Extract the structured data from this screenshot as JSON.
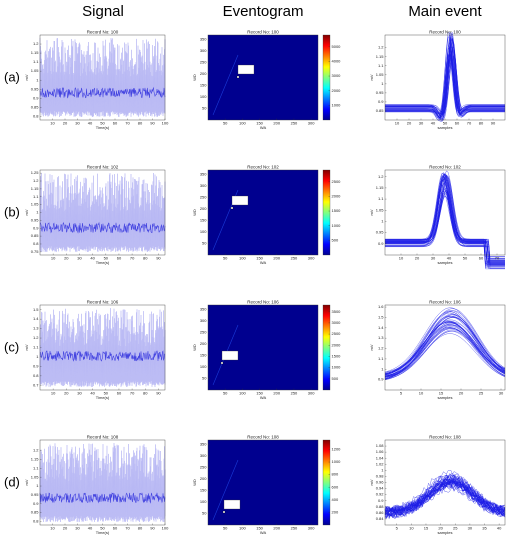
{
  "columns": [
    "Signal",
    "Eventogram",
    "Main event"
  ],
  "signal_xlabel": "Time(s)",
  "signal_ylabel": "mV",
  "event_xlabel": "WA",
  "event_ylabel": "WD",
  "main_xlabel": "samples",
  "main_ylabel": "mV",
  "rows": [
    {
      "label": "(a)",
      "title": "Record No: 100",
      "signal": {
        "xlim": [
          0,
          100
        ],
        "xticks": [
          10,
          20,
          30,
          40,
          50,
          60,
          70,
          80,
          90,
          100
        ],
        "ylim": [
          0.78,
          1.25
        ],
        "yticks": [
          0.8,
          0.85,
          0.9,
          0.95,
          1,
          1.05,
          1.1,
          1.15,
          1.2
        ]
      },
      "event": {
        "xlim": [
          0,
          320
        ],
        "ylim": [
          0,
          370
        ],
        "xticks": [
          50,
          100,
          150,
          200,
          250,
          300
        ],
        "yticks": [
          50,
          100,
          150,
          200,
          250,
          300,
          350
        ],
        "cblim": [
          0,
          5800
        ],
        "cbticks": [
          1000,
          2000,
          3000,
          4000,
          5000
        ]
      },
      "main": {
        "xlim": [
          0,
          100
        ],
        "xticks": [
          10,
          20,
          30,
          40,
          50,
          60,
          70,
          80,
          90
        ],
        "ylim": [
          0.8,
          1.27
        ],
        "yticks": [
          0.85,
          0.9,
          0.95,
          1,
          1.05,
          1.1,
          1.15,
          1.2
        ]
      }
    },
    {
      "label": "(b)",
      "title": "Record No: 102",
      "signal": {
        "xlim": [
          0,
          95
        ],
        "xticks": [
          10,
          20,
          30,
          40,
          50,
          60,
          70,
          80,
          90
        ],
        "ylim": [
          0.73,
          1.27
        ],
        "yticks": [
          0.75,
          0.8,
          0.85,
          0.9,
          0.95,
          1,
          1.05,
          1.1,
          1.15,
          1.2,
          1.25
        ]
      },
      "event": {
        "xlim": [
          0,
          320
        ],
        "ylim": [
          0,
          370
        ],
        "xticks": [
          50,
          100,
          150,
          200,
          250,
          300
        ],
        "yticks": [
          50,
          100,
          150,
          200,
          250,
          300,
          350
        ],
        "cblim": [
          0,
          2900
        ],
        "cbticks": [
          500,
          1000,
          1500,
          2000,
          2500
        ]
      },
      "main": {
        "xlim": [
          0,
          75
        ],
        "xticks": [
          10,
          20,
          30,
          40,
          50,
          60,
          70
        ],
        "ylim": [
          0.85,
          1.23
        ],
        "yticks": [
          0.9,
          0.95,
          1,
          1.05,
          1.1,
          1.15,
          1.2
        ]
      }
    },
    {
      "label": "(c)",
      "title": "Record No: 106",
      "signal": {
        "xlim": [
          0,
          95
        ],
        "xticks": [
          10,
          20,
          30,
          40,
          50,
          60,
          70,
          80,
          90
        ],
        "ylim": [
          0.65,
          1.55
        ],
        "yticks": [
          0.7,
          0.8,
          0.9,
          1,
          1.1,
          1.2,
          1.3,
          1.4,
          1.5
        ]
      },
      "event": {
        "xlim": [
          0,
          320
        ],
        "ylim": [
          0,
          370
        ],
        "xticks": [
          50,
          100,
          150,
          200,
          250,
          300
        ],
        "yticks": [
          50,
          100,
          150,
          200,
          250,
          300,
          350
        ],
        "cblim": [
          0,
          3800
        ],
        "cbticks": [
          500,
          1000,
          1500,
          2000,
          2500,
          3000,
          3500
        ]
      },
      "main": {
        "xlim": [
          1,
          31
        ],
        "xticks": [
          5,
          10,
          15,
          20,
          25,
          30
        ],
        "ylim": [
          0.8,
          1.62
        ],
        "yticks": [
          0.9,
          1,
          1.1,
          1.2,
          1.3,
          1.4,
          1.5,
          1.6
        ]
      }
    },
    {
      "label": "(d)",
      "title": "Record No: 108",
      "signal": {
        "xlim": [
          0,
          100
        ],
        "xticks": [
          10,
          20,
          30,
          40,
          50,
          60,
          70,
          80,
          90,
          100
        ],
        "ylim": [
          0.78,
          1.26
        ],
        "yticks": [
          0.8,
          0.85,
          0.9,
          0.95,
          1,
          1.05,
          1.1,
          1.15,
          1.2
        ]
      },
      "event": {
        "xlim": [
          0,
          320
        ],
        "ylim": [
          0,
          370
        ],
        "xticks": [
          50,
          100,
          150,
          200,
          250,
          300
        ],
        "yticks": [
          50,
          100,
          150,
          200,
          250,
          300,
          350
        ],
        "cblim": [
          0,
          1350
        ],
        "cbticks": [
          200,
          400,
          600,
          800,
          1000,
          1200
        ]
      },
      "main": {
        "xlim": [
          1,
          42
        ],
        "xticks": [
          5,
          10,
          15,
          20,
          25,
          30,
          35,
          40
        ],
        "ylim": [
          0.82,
          1.1
        ],
        "yticks": [
          0.84,
          0.86,
          0.88,
          0.9,
          0.92,
          0.94,
          0.96,
          0.98,
          1,
          1.02,
          1.04,
          1.06,
          1.08
        ]
      }
    }
  ]
}
